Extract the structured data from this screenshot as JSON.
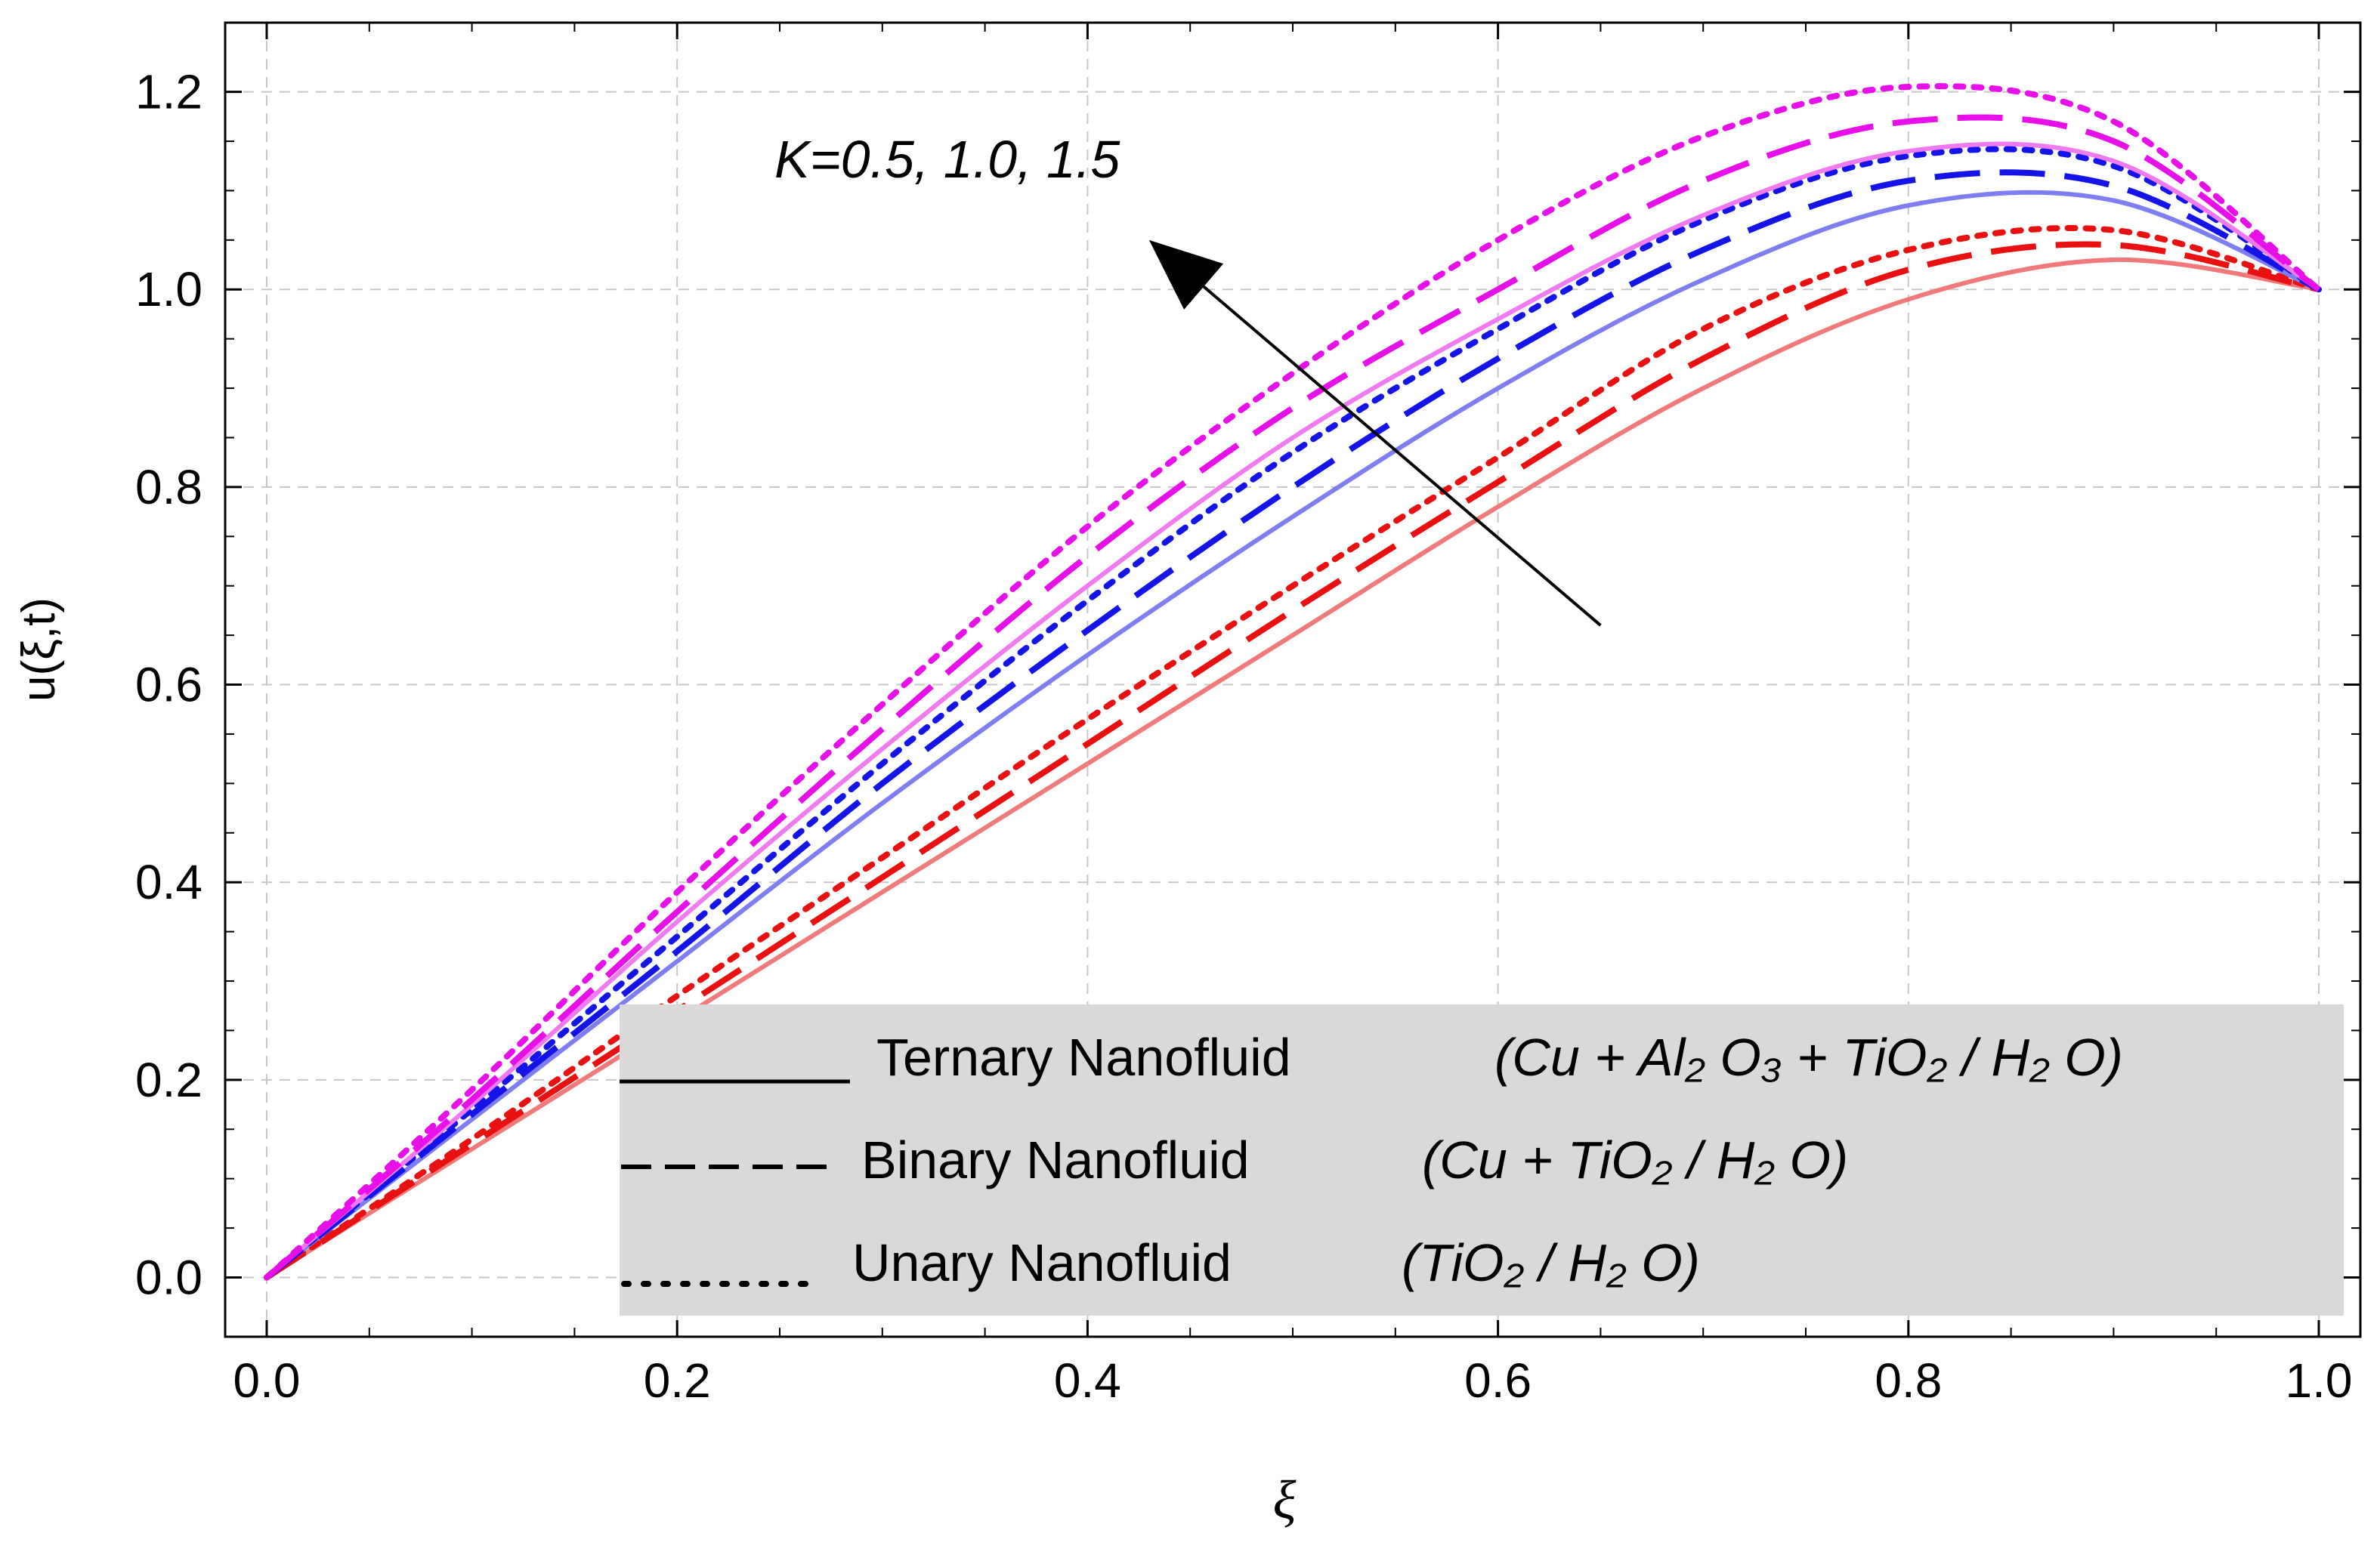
{
  "chart_data": {
    "type": "line",
    "title": "",
    "xlabel": "ξ",
    "ylabel": "u(ξ,t)",
    "xlim": [
      0.0,
      1.0
    ],
    "ylim": [
      -0.06,
      1.27
    ],
    "xticks": [
      "0.0",
      "0.2",
      "0.4",
      "0.6",
      "0.8",
      "1.0"
    ],
    "yticks": [
      "0.0",
      "0.2",
      "0.4",
      "0.6",
      "0.8",
      "1.0",
      "1.2"
    ],
    "grid": true,
    "annotation": "K=0.5, 1.0, 1.5",
    "annotation_arrow": {
      "from": [
        0.65,
        0.66
      ],
      "to": [
        0.43,
        1.05
      ]
    },
    "legend": {
      "placement": "bottom-right",
      "background": "#d9d9d9",
      "entries": [
        {
          "style": "solid",
          "label": "Ternary Nanofluid",
          "formula": "(Cu + Al₂ O₃ + TiO₂ / H₂ O)"
        },
        {
          "style": "dashed",
          "label": "Binary Nanofluid",
          "formula": "(Cu + TiO₂ / H₂ O)"
        },
        {
          "style": "dotted",
          "label": "Unary Nanofluid",
          "formula": "(TiO₂ / H₂ O)"
        }
      ]
    },
    "x": [
      0.0,
      0.1,
      0.2,
      0.3,
      0.4,
      0.5,
      0.6,
      0.7,
      0.8,
      0.9,
      1.0
    ],
    "series": [
      {
        "name": "K=0.5, Ternary",
        "group": "K=0.5",
        "style": "solid",
        "color": "#f07a7a",
        "values": [
          0.0,
          0.13,
          0.26,
          0.39,
          0.52,
          0.65,
          0.78,
          0.9,
          0.99,
          1.03,
          1.0
        ]
      },
      {
        "name": "K=0.5, Binary",
        "group": "K=0.5",
        "style": "dashed",
        "color": "#e81010",
        "values": [
          0.0,
          0.135,
          0.27,
          0.405,
          0.54,
          0.675,
          0.805,
          0.93,
          1.02,
          1.045,
          1.0
        ]
      },
      {
        "name": "K=0.5, Unary",
        "group": "K=0.5",
        "style": "dotted",
        "color": "#e81010",
        "values": [
          0.0,
          0.14,
          0.285,
          0.425,
          0.565,
          0.7,
          0.83,
          0.96,
          1.04,
          1.06,
          1.0
        ]
      },
      {
        "name": "K=1.0, Ternary",
        "group": "K=1.0",
        "style": "solid",
        "color": "#7e7ef2",
        "values": [
          0.0,
          0.16,
          0.32,
          0.48,
          0.63,
          0.77,
          0.9,
          1.01,
          1.085,
          1.09,
          1.0
        ]
      },
      {
        "name": "K=1.0, Binary",
        "group": "K=1.0",
        "style": "dashed",
        "color": "#1414e8",
        "values": [
          0.0,
          0.165,
          0.33,
          0.5,
          0.655,
          0.8,
          0.93,
          1.04,
          1.11,
          1.105,
          1.0
        ]
      },
      {
        "name": "K=1.0, Unary",
        "group": "K=1.0",
        "style": "dotted",
        "color": "#1414e8",
        "values": [
          0.0,
          0.17,
          0.345,
          0.52,
          0.685,
          0.835,
          0.96,
          1.07,
          1.135,
          1.125,
          1.0
        ]
      },
      {
        "name": "K=1.5, Ternary",
        "group": "K=1.5",
        "style": "solid",
        "color": "#f07af0",
        "values": [
          0.0,
          0.175,
          0.36,
          0.535,
          0.7,
          0.85,
          0.97,
          1.075,
          1.14,
          1.13,
          1.0
        ]
      },
      {
        "name": "K=1.5, Binary",
        "group": "K=1.5",
        "style": "dashed",
        "color": "#e810e8",
        "values": [
          0.0,
          0.18,
          0.37,
          0.555,
          0.73,
          0.88,
          1.0,
          1.11,
          1.17,
          1.15,
          1.0
        ]
      },
      {
        "name": "K=1.5, Unary",
        "group": "K=1.5",
        "style": "dotted",
        "color": "#e810e8",
        "values": [
          0.0,
          0.19,
          0.39,
          0.58,
          0.76,
          0.915,
          1.05,
          1.155,
          1.205,
          1.17,
          1.0
        ]
      }
    ]
  }
}
